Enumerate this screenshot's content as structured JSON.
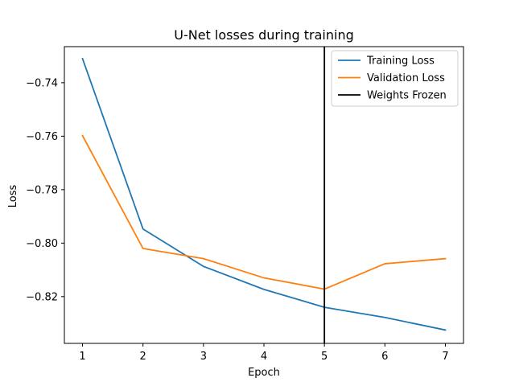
{
  "chart_data": {
    "type": "line",
    "title": "U-Net losses during training",
    "xlabel": "Epoch",
    "ylabel": "Loss",
    "xlim": [
      0.7,
      7.3
    ],
    "ylim": [
      -0.8375,
      -0.7265
    ],
    "xticks": [
      1,
      2,
      3,
      4,
      5,
      6,
      7
    ],
    "yticks": [
      -0.82,
      -0.8,
      -0.78,
      -0.76,
      -0.74
    ],
    "ytick_labels": [
      "−0.82",
      "−0.80",
      "−0.78",
      "−0.76",
      "−0.74"
    ],
    "grid": false,
    "legend_position": "top-right",
    "series": [
      {
        "name": "Training Loss",
        "color": "#1f77b4",
        "x": [
          1,
          2,
          3,
          4,
          5,
          6,
          7
        ],
        "values": [
          -0.731,
          -0.7947,
          -0.8087,
          -0.8173,
          -0.824,
          -0.8278,
          -0.8325
        ]
      },
      {
        "name": "Validation Loss",
        "color": "#ff7f0e",
        "x": [
          1,
          2,
          3,
          4,
          5,
          6,
          7
        ],
        "values": [
          -0.7598,
          -0.802,
          -0.8058,
          -0.813,
          -0.8172,
          -0.8077,
          -0.8058
        ]
      }
    ],
    "vlines": [
      {
        "name": "Weights Frozen",
        "color": "#000000",
        "x": 5
      }
    ]
  }
}
